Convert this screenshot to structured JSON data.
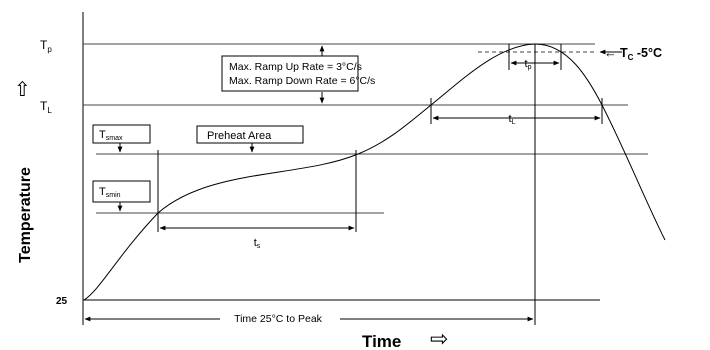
{
  "axes": {
    "y_label": "Temperature",
    "x_label": "Time",
    "y_arrow": "⇧",
    "x_arrow": "⇨",
    "origin_label": "25"
  },
  "levels": {
    "tp": {
      "main": "T",
      "sub": "p"
    },
    "tl": {
      "main": "T",
      "sub": "L"
    },
    "tsmax": {
      "main": "T",
      "sub": "smax"
    },
    "tsmin": {
      "main": "T",
      "sub": "smin"
    },
    "tc": {
      "main": "T",
      "sub": "C",
      "rest": " -5°C",
      "arrow": "←"
    }
  },
  "annotations": {
    "ramp_up": "Max. Ramp Up Rate = 3°C/s",
    "ramp_down": "Max. Ramp Down Rate = 6°C/s",
    "preheat": "Preheat Area",
    "ts": {
      "main": "t",
      "sub": "s"
    },
    "tl_time": {
      "main": "t",
      "sub": "L"
    },
    "tp_time": {
      "main": "t",
      "sub": "p"
    },
    "time_to_peak": "Time 25°C to Peak"
  }
}
